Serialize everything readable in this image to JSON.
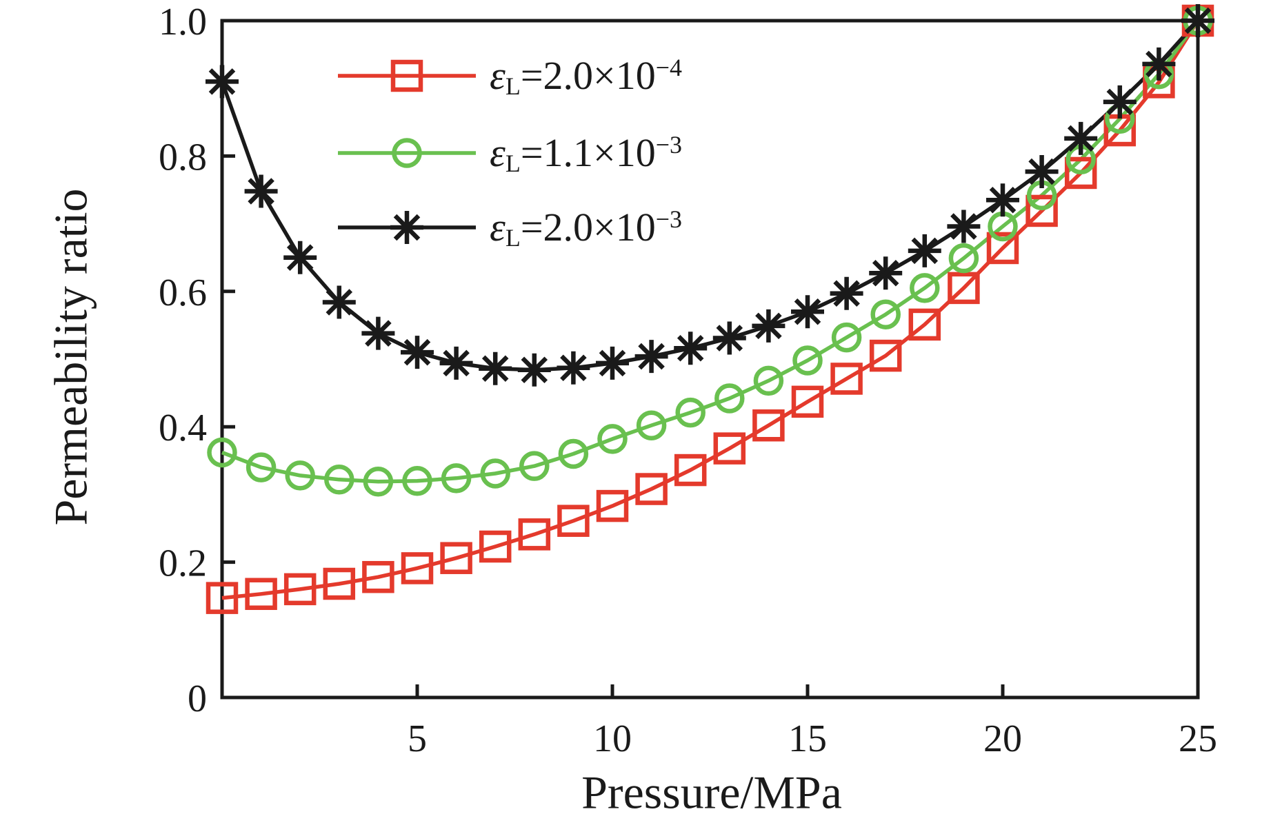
{
  "figure": {
    "background": "#ffffff",
    "axis_color": "#1a1a1a"
  },
  "chart_data": {
    "type": "line",
    "title": "",
    "xlabel": "Pressure/MPa",
    "ylabel": "Permeability ratio",
    "xlim": [
      0,
      25
    ],
    "ylim": [
      0,
      1.0
    ],
    "grid": false,
    "legend_position": "upper-left-inside",
    "x_ticks": [
      5,
      10,
      15,
      20,
      25
    ],
    "x_tick_labels": [
      "5",
      "10",
      "15",
      "20",
      "25"
    ],
    "y_ticks": [
      0,
      0.2,
      0.4,
      0.6,
      0.8,
      1.0
    ],
    "y_tick_labels": [
      "0",
      "0.2",
      "0.4",
      "0.6",
      "0.8",
      "1.0"
    ],
    "x": [
      0,
      1,
      2,
      3,
      4,
      5,
      6,
      7,
      8,
      9,
      10,
      11,
      12,
      13,
      14,
      15,
      16,
      17,
      18,
      19,
      20,
      21,
      22,
      23,
      24,
      25
    ],
    "series": [
      {
        "name": "εL=2.0×10⁻⁴",
        "color": "#e43a2c",
        "marker": "square",
        "legend": {
          "prefix": "ε",
          "prefix_sub": "L",
          "value": "=2.0×10",
          "exponent": "−4"
        },
        "values": [
          0.147,
          0.153,
          0.16,
          0.168,
          0.178,
          0.191,
          0.206,
          0.223,
          0.241,
          0.261,
          0.283,
          0.308,
          0.336,
          0.368,
          0.402,
          0.437,
          0.471,
          0.505,
          0.551,
          0.605,
          0.664,
          0.719,
          0.775,
          0.838,
          0.909,
          1.0
        ]
      },
      {
        "name": "εL=1.1×10⁻³",
        "color": "#69c04f",
        "marker": "circle",
        "legend": {
          "prefix": "ε",
          "prefix_sub": "L",
          "value": "=1.1×10",
          "exponent": "−3"
        },
        "values": [
          0.362,
          0.34,
          0.328,
          0.322,
          0.319,
          0.32,
          0.324,
          0.331,
          0.342,
          0.36,
          0.382,
          0.402,
          0.421,
          0.442,
          0.468,
          0.498,
          0.532,
          0.566,
          0.605,
          0.649,
          0.696,
          0.742,
          0.795,
          0.855,
          0.921,
          1.0
        ]
      },
      {
        "name": "εL=2.0×10⁻³",
        "color": "#1a1a1a",
        "marker": "asterisk",
        "legend": {
          "prefix": "ε",
          "prefix_sub": "L",
          "value": "=2.0×10",
          "exponent": "−3"
        },
        "values": [
          0.91,
          0.748,
          0.65,
          0.584,
          0.538,
          0.51,
          0.494,
          0.486,
          0.484,
          0.487,
          0.494,
          0.504,
          0.516,
          0.531,
          0.549,
          0.57,
          0.597,
          0.627,
          0.66,
          0.696,
          0.735,
          0.777,
          0.826,
          0.88,
          0.936,
          1.0
        ]
      }
    ]
  }
}
